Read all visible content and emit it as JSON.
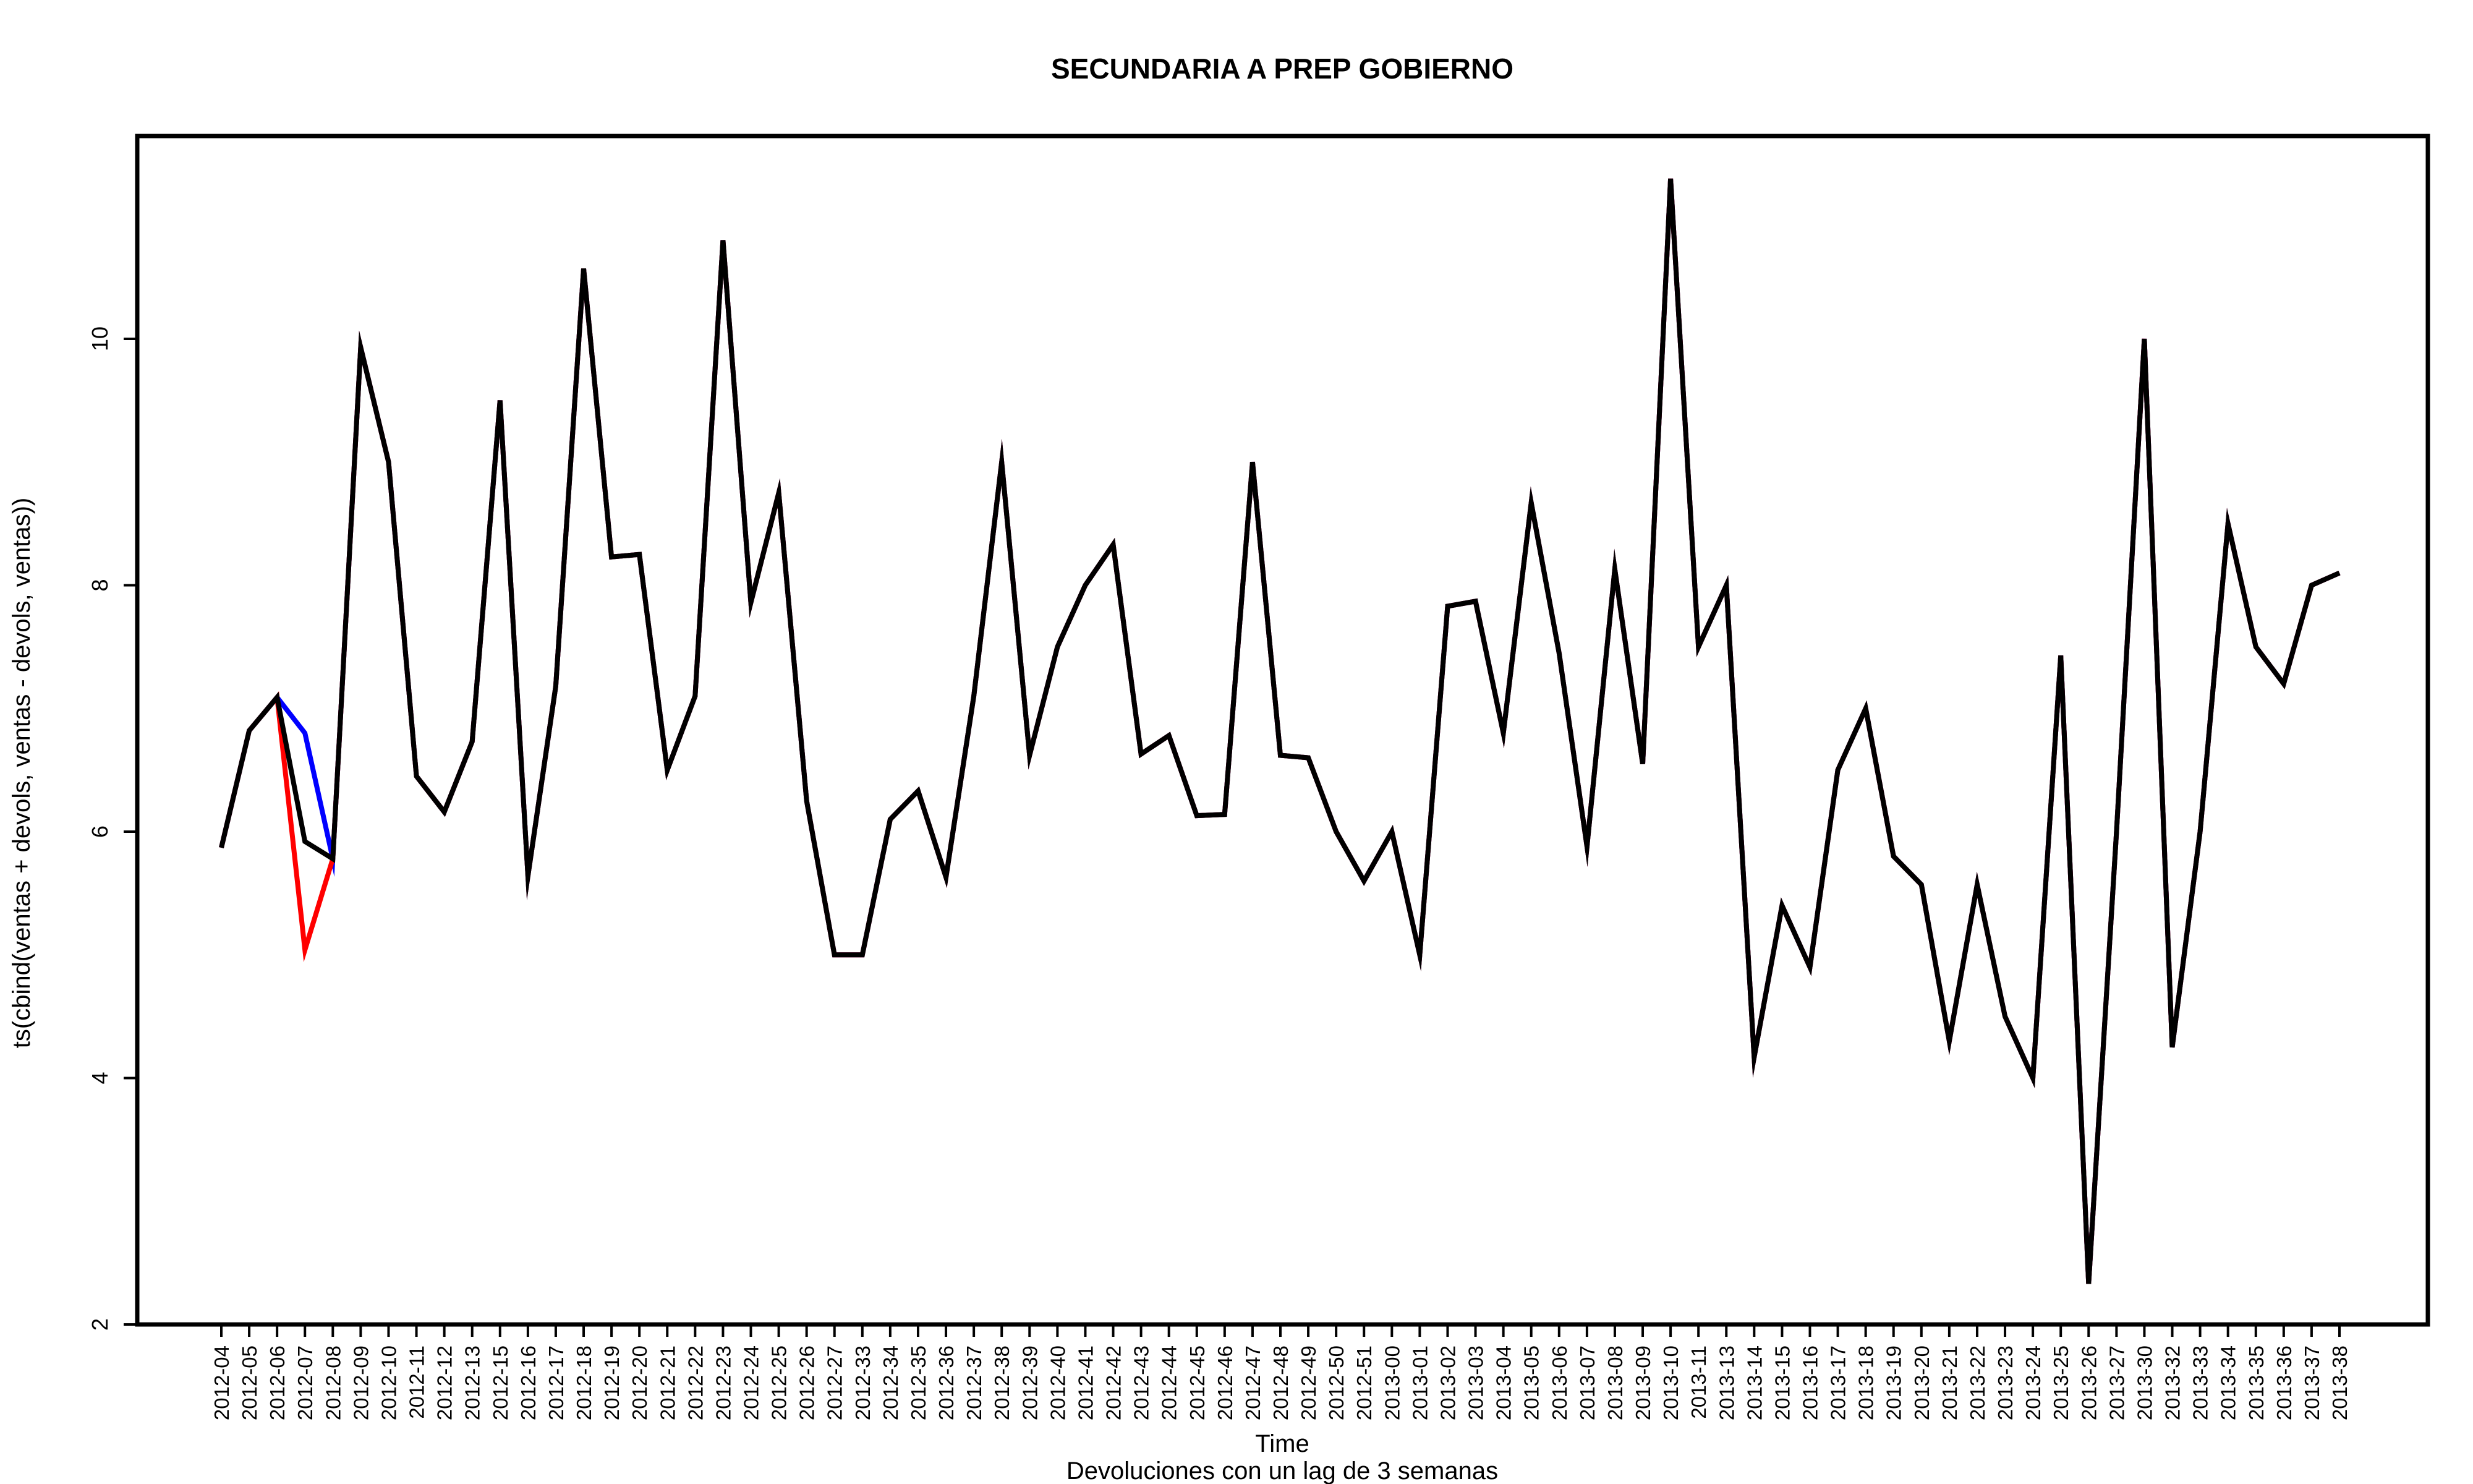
{
  "chart_data": {
    "type": "line",
    "title": "SECUNDARIA A PREP GOBIERNO",
    "xlabel": "Time",
    "subtitle": "Devoluciones con un lag de 3 semanas",
    "ylabel": "ts(cbind(ventas + devols, ventas - devols, ventas))",
    "ylim": [
      2,
      11.6
    ],
    "yticks": [
      2,
      4,
      6,
      8,
      10
    ],
    "grid": false,
    "legend": "none",
    "categories": [
      "2012-04",
      "2012-05",
      "2012-06",
      "2012-07",
      "2012-08",
      "2012-09",
      "2012-10",
      "2012-11",
      "2012-12",
      "2012-13",
      "2012-15",
      "2012-16",
      "2012-17",
      "2012-18",
      "2012-19",
      "2012-20",
      "2012-21",
      "2012-22",
      "2012-23",
      "2012-24",
      "2012-25",
      "2012-26",
      "2012-27",
      "2012-33",
      "2012-34",
      "2012-35",
      "2012-36",
      "2012-37",
      "2012-38",
      "2012-39",
      "2012-40",
      "2012-41",
      "2012-42",
      "2012-43",
      "2012-44",
      "2012-45",
      "2012-46",
      "2012-47",
      "2012-48",
      "2012-49",
      "2012-50",
      "2012-51",
      "2013-00",
      "2013-01",
      "2013-02",
      "2013-03",
      "2013-04",
      "2013-05",
      "2013-06",
      "2013-07",
      "2013-08",
      "2013-09",
      "2013-10",
      "2013-11",
      "2013-13",
      "2013-14",
      "2013-15",
      "2013-16",
      "2013-17",
      "2013-18",
      "2013-19",
      "2013-20",
      "2013-21",
      "2013-22",
      "2013-23",
      "2013-24",
      "2013-25",
      "2013-26",
      "2013-27",
      "2013-30",
      "2013-32",
      "2013-33",
      "2013-34",
      "2013-35",
      "2013-36",
      "2013-37",
      "2013-38"
    ],
    "series": [
      {
        "color": "#0000ff",
        "values": [
          5.87,
          6.82,
          7.09,
          6.8,
          5.78,
          9.93,
          9.0,
          6.45,
          6.16,
          6.73,
          9.5,
          5.64,
          7.18,
          10.57,
          8.23,
          8.25,
          6.5,
          7.1,
          10.8,
          7.86,
          8.75,
          6.25,
          5.0,
          5.0,
          6.1,
          6.33,
          5.63,
          7.1,
          9.0,
          6.62,
          7.5,
          8.0,
          8.33,
          6.63,
          6.78,
          6.13,
          6.14,
          9.0,
          6.62,
          6.6,
          6.0,
          5.6,
          6.0,
          5.0,
          7.83,
          7.87,
          6.8,
          8.67,
          7.45,
          5.88,
          8.13,
          6.55,
          11.3,
          7.5,
          8.0,
          4.17,
          5.4,
          4.9,
          6.5,
          7.0,
          5.8,
          5.57,
          4.3,
          5.57,
          4.5,
          4.0,
          7.43,
          2.33,
          6.0,
          10.0,
          4.25,
          6.0,
          8.5,
          7.5,
          7.2,
          8.0,
          8.1
        ]
      },
      {
        "color": "#ff0000",
        "values": [
          5.87,
          6.82,
          7.09,
          5.04,
          5.78,
          9.93,
          9.0,
          6.45,
          6.16,
          6.73,
          9.5,
          5.64,
          7.18,
          10.57,
          8.23,
          8.25,
          6.5,
          7.1,
          10.8,
          7.86,
          8.75,
          6.25,
          5.0,
          5.0,
          6.1,
          6.33,
          5.63,
          7.1,
          9.0,
          6.62,
          7.5,
          8.0,
          8.33,
          6.63,
          6.78,
          6.13,
          6.14,
          9.0,
          6.62,
          6.6,
          6.0,
          5.6,
          6.0,
          5.0,
          7.83,
          7.87,
          6.8,
          8.67,
          7.45,
          5.88,
          8.13,
          6.55,
          11.3,
          7.5,
          8.0,
          4.17,
          5.4,
          4.9,
          6.5,
          7.0,
          5.8,
          5.57,
          4.3,
          5.57,
          4.5,
          4.0,
          7.43,
          2.33,
          6.0,
          10.0,
          4.25,
          6.0,
          8.5,
          7.5,
          7.2,
          8.0,
          8.1
        ]
      },
      {
        "color": "#000000",
        "values": [
          5.87,
          6.82,
          7.09,
          5.92,
          5.78,
          9.93,
          9.0,
          6.45,
          6.16,
          6.73,
          9.5,
          5.64,
          7.18,
          10.57,
          8.23,
          8.25,
          6.5,
          7.1,
          10.8,
          7.86,
          8.75,
          6.25,
          5.0,
          5.0,
          6.1,
          6.33,
          5.63,
          7.1,
          9.0,
          6.62,
          7.5,
          8.0,
          8.33,
          6.63,
          6.78,
          6.13,
          6.14,
          9.0,
          6.62,
          6.6,
          6.0,
          5.6,
          6.0,
          5.0,
          7.83,
          7.87,
          6.8,
          8.67,
          7.45,
          5.88,
          8.13,
          6.55,
          11.3,
          7.5,
          8.0,
          4.17,
          5.4,
          4.9,
          6.5,
          7.0,
          5.8,
          5.57,
          4.3,
          5.57,
          4.5,
          4.0,
          7.43,
          2.33,
          6.0,
          10.0,
          4.25,
          6.0,
          8.5,
          7.5,
          7.2,
          8.0,
          8.1
        ]
      }
    ]
  }
}
